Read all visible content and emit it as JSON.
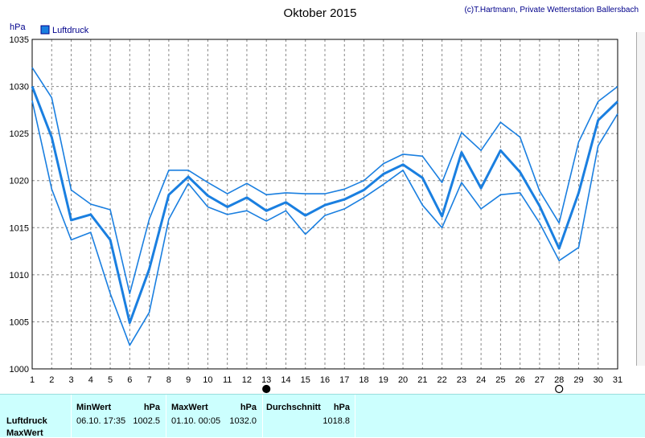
{
  "title": "Oktober 2015",
  "credit": "(c)T.Hartmann, Private Wetterstation Ballersbach",
  "y_unit": "hPa",
  "legend_label": "Luftdruck",
  "colors": {
    "line": "#1a7fe0",
    "grid": "#888888",
    "accent": "#00008b",
    "panel": "#ccfffe"
  },
  "chart_data": {
    "type": "line",
    "title": "Oktober 2015",
    "ylabel": "hPa",
    "ylim": [
      1000,
      1035
    ],
    "yticks": [
      1000,
      1005,
      1010,
      1015,
      1020,
      1025,
      1030,
      1035
    ],
    "x": [
      1,
      2,
      3,
      4,
      5,
      6,
      7,
      8,
      9,
      10,
      11,
      12,
      13,
      14,
      15,
      16,
      17,
      18,
      19,
      20,
      21,
      22,
      23,
      24,
      25,
      26,
      27,
      28,
      29,
      30,
      31
    ],
    "grid": true,
    "legend": "top-left",
    "series": [
      {
        "name": "Luftdruck",
        "role": "mean",
        "values": [
          1030.0,
          1024.6,
          1015.8,
          1016.4,
          1013.7,
          1004.9,
          1010.6,
          1018.5,
          1020.4,
          1018.4,
          1017.2,
          1018.2,
          1016.8,
          1017.7,
          1016.3,
          1017.4,
          1018.0,
          1019.0,
          1020.7,
          1021.7,
          1020.3,
          1016.2,
          1023.0,
          1019.2,
          1023.2,
          1020.9,
          1017.3,
          1012.8,
          1018.7,
          1026.4,
          1028.4
        ]
      },
      {
        "name": "",
        "role": "max",
        "values": [
          1032.0,
          1028.8,
          1019.0,
          1017.5,
          1016.9,
          1008.0,
          1015.9,
          1021.1,
          1021.1,
          1019.8,
          1018.6,
          1019.7,
          1018.5,
          1018.7,
          1018.6,
          1018.6,
          1019.1,
          1020.0,
          1021.8,
          1022.8,
          1022.6,
          1019.8,
          1025.1,
          1023.2,
          1026.2,
          1024.6,
          1018.9,
          1015.5,
          1024.1,
          1028.4,
          1030.0
        ]
      },
      {
        "name": "",
        "role": "min",
        "values": [
          1028.5,
          1019.1,
          1013.7,
          1014.5,
          1008.0,
          1002.5,
          1006.0,
          1015.9,
          1019.7,
          1017.2,
          1016.4,
          1016.8,
          1015.7,
          1016.8,
          1014.3,
          1016.3,
          1017.0,
          1018.2,
          1019.6,
          1021.1,
          1017.4,
          1015.0,
          1019.8,
          1017.0,
          1018.5,
          1018.7,
          1015.5,
          1011.5,
          1012.9,
          1023.7,
          1027.1
        ]
      }
    ],
    "moon_markers": [
      {
        "day": 13,
        "phase": "new"
      },
      {
        "day": 28,
        "phase": "full"
      }
    ]
  },
  "panel": {
    "row_labels": [
      "Luftdruck",
      "MaxWert"
    ],
    "min": {
      "header": "MinWert",
      "unit": "hPa",
      "time": "06.10.  17:35",
      "value": "1002.5"
    },
    "max": {
      "header": "MaxWert",
      "unit": "hPa",
      "time": "01.10.  00:05",
      "value": "1032.0"
    },
    "avg": {
      "header": "Durchschnitt",
      "unit": "hPa",
      "value": "1018.8"
    }
  }
}
